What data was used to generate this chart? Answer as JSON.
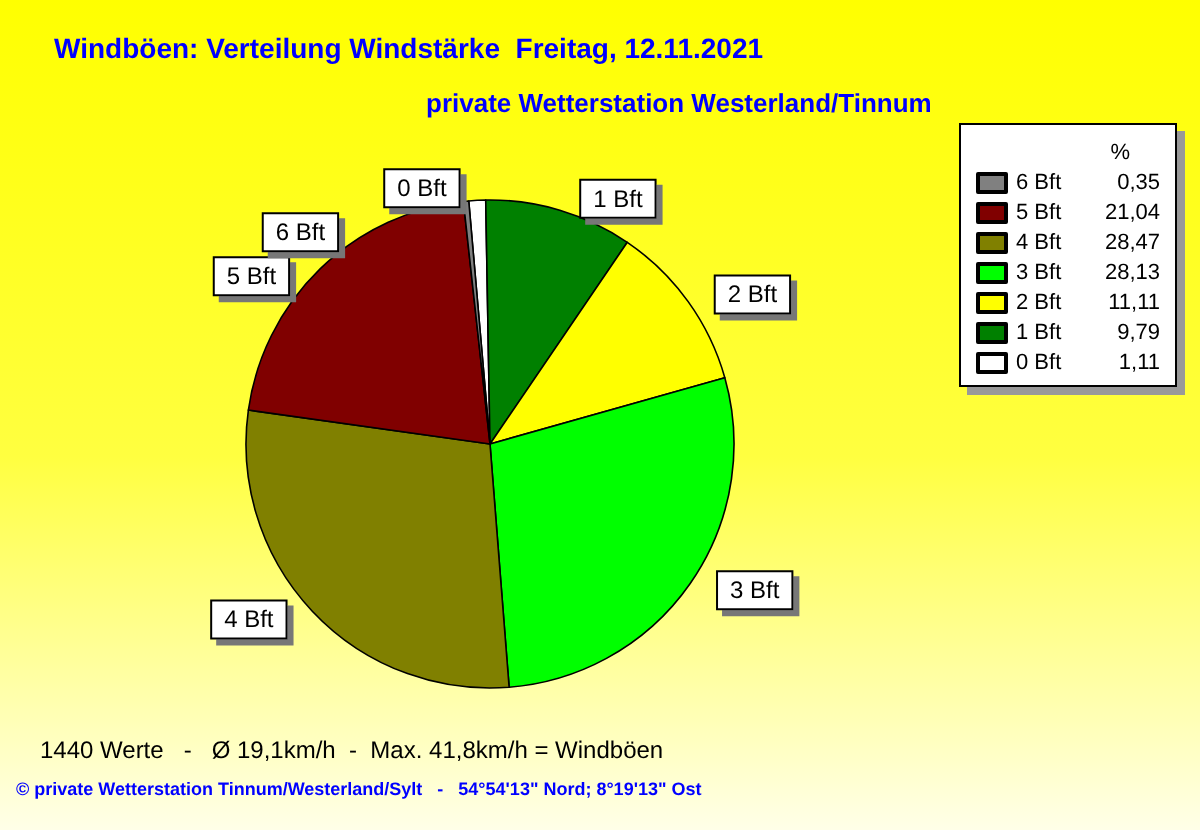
{
  "chart_data": {
    "type": "pie",
    "title": "Windböen: Verteilung Windstärke  Freitag, 12.11.2021",
    "subtitle": "private Wetterstation Westerland/Tinnum",
    "legend_title": "%",
    "legend": "top right",
    "categories": [
      "6 Bft",
      "5 Bft",
      "4 Bft",
      "3 Bft",
      "2 Bft",
      "1 Bft",
      "0 Bft"
    ],
    "values": [
      0.35,
      21.04,
      28.47,
      28.13,
      11.11,
      9.79,
      1.11
    ],
    "value_labels": [
      "0,35",
      "21,04",
      "28,47",
      "28,13",
      "11,11",
      "9,79",
      "1,11"
    ],
    "colors": [
      "#808080",
      "#800000",
      "#808000",
      "#00ff00",
      "#ffff00",
      "#008000",
      "#ffffff"
    ],
    "annotations": [
      "1440 Werte   -   Ø 19,1km/h  -  Max. 41,8km/h = Windböen",
      "© private Wetterstation Tinnum/Westerland/Sylt   -   54°54'13\" Nord; 8°19'13\" Ost"
    ]
  }
}
